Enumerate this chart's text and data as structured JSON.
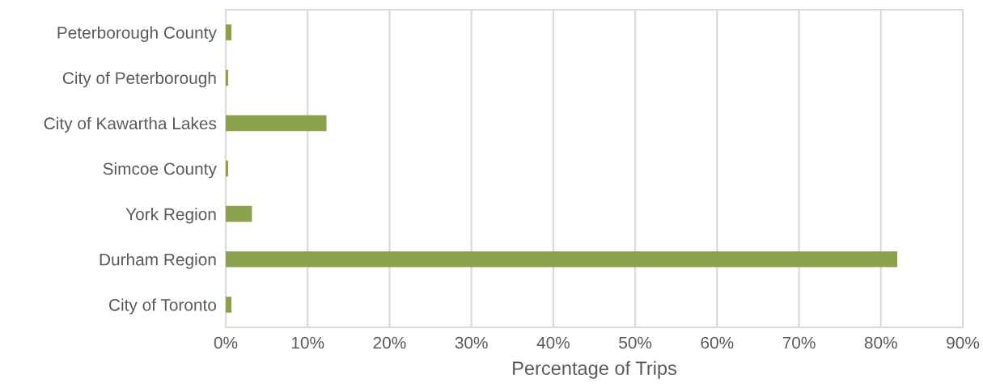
{
  "chart_data": {
    "type": "bar",
    "orientation": "horizontal",
    "xlabel": "Percentage of Trips",
    "categories": [
      "Peterborough County",
      "City of Peterborough",
      "City of Kawartha Lakes",
      "Simcoe County",
      "York Region",
      "Durham Region",
      "City of Toronto"
    ],
    "values": [
      0.7,
      0.3,
      12.3,
      0.3,
      3.2,
      82.0,
      0.7
    ],
    "color": "#8ba24c",
    "xlim": [
      0,
      90
    ],
    "xticks": [
      {
        "value": 0,
        "label": "0%"
      },
      {
        "value": 10,
        "label": "10%"
      },
      {
        "value": 20,
        "label": "20%"
      },
      {
        "value": 30,
        "label": "30%"
      },
      {
        "value": 40,
        "label": "40%"
      },
      {
        "value": 50,
        "label": "50%"
      },
      {
        "value": 60,
        "label": "60%"
      },
      {
        "value": 70,
        "label": "70%"
      },
      {
        "value": 80,
        "label": "80%"
      },
      {
        "value": 90,
        "label": "90%"
      }
    ],
    "grid": "x",
    "legend": false
  }
}
